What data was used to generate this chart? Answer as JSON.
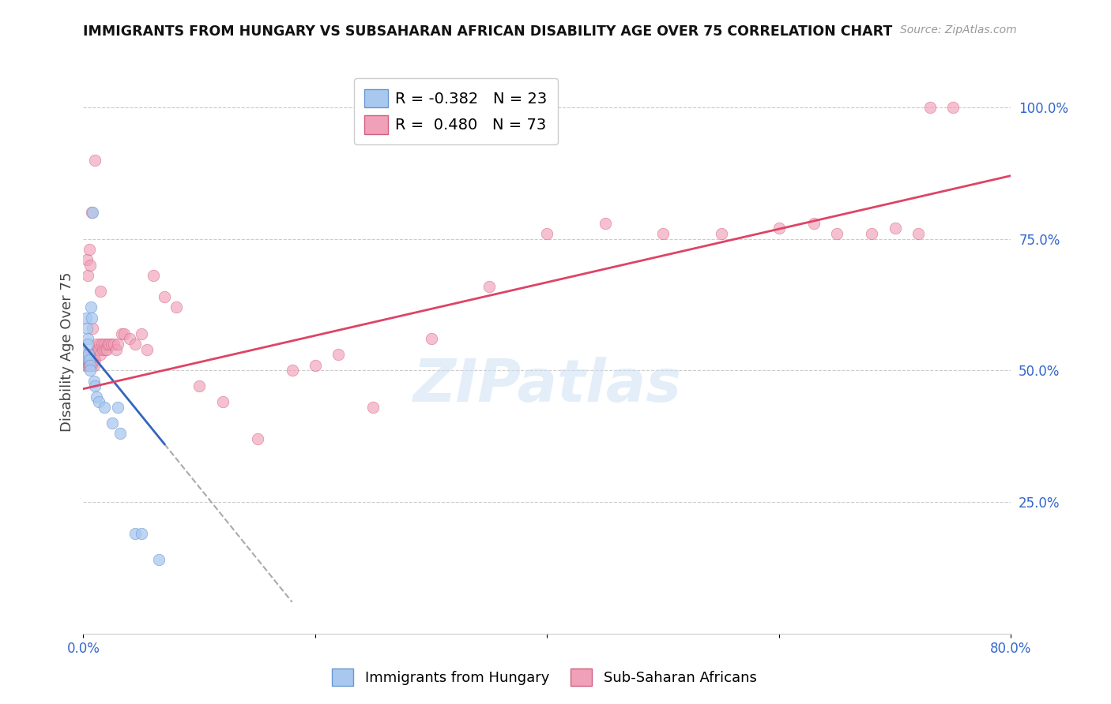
{
  "title": "IMMIGRANTS FROM HUNGARY VS SUBSAHARAN AFRICAN DISABILITY AGE OVER 75 CORRELATION CHART",
  "source": "Source: ZipAtlas.com",
  "ylabel": "Disability Age Over 75",
  "xmin": 0.0,
  "xmax": 80.0,
  "ymin": 0.0,
  "ymax": 107.0,
  "legend_r1": "-0.382",
  "legend_n1": "23",
  "legend_r2": "0.480",
  "legend_n2": "73",
  "series1_color": "#a8c8f0",
  "series1_edge": "#6898d0",
  "series2_color": "#f0a0b8",
  "series2_edge": "#d06080",
  "trendline1_color": "#3366bb",
  "trendline2_color": "#dd4466",
  "grid_color": "#cccccc",
  "background_color": "#ffffff",
  "watermark": "ZIPatlas",
  "blue_x": [
    0.15,
    0.25,
    0.3,
    0.35,
    0.4,
    0.45,
    0.5,
    0.55,
    0.6,
    0.65,
    0.7,
    0.8,
    0.9,
    1.0,
    1.1,
    1.3,
    1.8,
    2.5,
    3.0,
    3.2,
    4.5,
    5.0,
    6.5
  ],
  "blue_y": [
    53,
    60,
    58,
    56,
    55,
    53,
    52,
    51,
    50,
    62,
    60,
    80,
    48,
    47,
    45,
    44,
    43,
    40,
    43,
    38,
    19,
    19,
    14
  ],
  "pink_x": [
    0.1,
    0.15,
    0.2,
    0.25,
    0.3,
    0.35,
    0.4,
    0.45,
    0.5,
    0.55,
    0.6,
    0.65,
    0.7,
    0.75,
    0.8,
    0.85,
    0.9,
    0.95,
    1.0,
    1.1,
    1.2,
    1.3,
    1.4,
    1.5,
    1.6,
    1.7,
    1.8,
    1.9,
    2.0,
    2.1,
    2.2,
    2.4,
    2.6,
    2.8,
    3.0,
    3.3,
    3.5,
    4.0,
    4.5,
    5.0,
    5.5,
    6.0,
    7.0,
    8.0,
    10.0,
    12.0,
    15.0,
    18.0,
    20.0,
    22.0,
    25.0,
    30.0,
    35.0,
    40.0,
    45.0,
    50.0,
    55.0,
    60.0,
    63.0,
    65.0,
    68.0,
    70.0,
    72.0,
    73.0,
    75.0,
    0.3,
    0.4,
    0.5,
    0.6,
    0.7,
    0.8,
    1.0,
    1.5
  ],
  "pink_y": [
    52,
    52,
    51,
    52,
    51,
    53,
    52,
    51,
    51,
    52,
    53,
    52,
    51,
    53,
    52,
    52,
    51,
    53,
    52,
    55,
    54,
    54,
    55,
    53,
    55,
    54,
    55,
    54,
    54,
    55,
    55,
    55,
    55,
    54,
    55,
    57,
    57,
    56,
    55,
    57,
    54,
    68,
    64,
    62,
    47,
    44,
    37,
    50,
    51,
    53,
    43,
    56,
    66,
    76,
    78,
    76,
    76,
    77,
    78,
    76,
    76,
    77,
    76,
    100,
    100,
    71,
    68,
    73,
    70,
    80,
    58,
    90,
    65
  ],
  "pink_trend_x0": 0.0,
  "pink_trend_y0": 46.5,
  "pink_trend_x1": 80.0,
  "pink_trend_y1": 87.0,
  "blue_trend_x0": 0.0,
  "blue_trend_y0": 55.0,
  "blue_trend_x1": 7.0,
  "blue_trend_y1": 36.0,
  "blue_dash_x0": 7.0,
  "blue_dash_y0": 36.0,
  "blue_dash_x1": 18.0,
  "blue_dash_y1": 6.0
}
